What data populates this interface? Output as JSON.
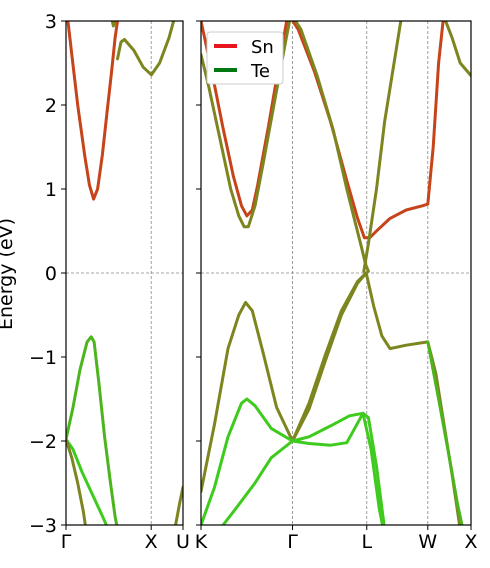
{
  "chart_data": {
    "type": "line",
    "title": "",
    "ylabel": "Energy (eV)",
    "ylim": [
      -3,
      3
    ],
    "yticks": [
      3,
      2,
      1,
      0,
      -1,
      -2,
      -3
    ],
    "ytick_labels": [
      "3",
      "2",
      "1",
      "0",
      "−1",
      "−2",
      "−3"
    ],
    "grid": "vertical dashed lines at high-symmetry points; horizontal dashed line at E=0",
    "legend": {
      "placement": "top-left of right panel",
      "entries": [
        {
          "label": "Sn",
          "color": "#e8141c"
        },
        {
          "label": "Te",
          "color": "#007a10"
        }
      ]
    },
    "panels": [
      {
        "name": "left",
        "xlim": [
          0,
          1
        ],
        "kpoints": [
          {
            "x": 0,
            "label": "Γ"
          },
          {
            "x": 0.728,
            "label": "X"
          },
          {
            "x": 1,
            "label": "U"
          }
        ],
        "series": [
          {
            "name": "",
            "color": "#c7441b",
            "points": [
              [
                0,
                3.2
              ],
              [
                0.05,
                2.6
              ],
              [
                0.1,
                2.0
              ],
              [
                0.16,
                1.4
              ],
              [
                0.2,
                1.05
              ],
              [
                0.236,
                0.88
              ],
              [
                0.27,
                1.0
              ],
              [
                0.31,
                1.4
              ],
              [
                0.35,
                1.9
              ],
              [
                0.39,
                2.4
              ],
              [
                0.42,
                2.8
              ],
              [
                0.44,
                3.0
              ],
              [
                0.46,
                3.2
              ]
            ]
          },
          {
            "name": "",
            "color": "#7d851f",
            "points": [
              [
                0.38,
                3.1
              ],
              [
                0.405,
                2.94
              ],
              [
                0.43,
                3.05
              ],
              [
                0.445,
                3.2
              ]
            ]
          },
          {
            "name": "",
            "color": "#7d851f",
            "points": [
              [
                0.44,
                2.55
              ],
              [
                0.47,
                2.75
              ],
              [
                0.5,
                2.78
              ],
              [
                0.58,
                2.65
              ],
              [
                0.66,
                2.45
              ],
              [
                0.73,
                2.36
              ],
              [
                0.8,
                2.5
              ],
              [
                0.88,
                2.8
              ],
              [
                0.92,
                3.0
              ],
              [
                0.94,
                3.2
              ]
            ]
          },
          {
            "name": "",
            "color": "#4cb51e",
            "points": [
              [
                0,
                -1.98
              ],
              [
                0.06,
                -1.6
              ],
              [
                0.12,
                -1.15
              ],
              [
                0.18,
                -0.82
              ],
              [
                0.215,
                -0.76
              ],
              [
                0.24,
                -0.82
              ],
              [
                0.28,
                -1.3
              ],
              [
                0.33,
                -1.95
              ],
              [
                0.38,
                -2.5
              ],
              [
                0.42,
                -2.9
              ],
              [
                0.44,
                -3.05
              ]
            ]
          },
          {
            "name": "",
            "color": "#3fca1e",
            "points": [
              [
                0,
                -1.98
              ],
              [
                0.06,
                -2.1
              ],
              [
                0.14,
                -2.38
              ],
              [
                0.24,
                -2.68
              ],
              [
                0.32,
                -2.92
              ],
              [
                0.36,
                -3.05
              ]
            ]
          },
          {
            "name": "",
            "color": "#7d851f",
            "points": [
              [
                0,
                -1.98
              ],
              [
                0.05,
                -2.2
              ],
              [
                0.1,
                -2.5
              ],
              [
                0.15,
                -2.85
              ],
              [
                0.17,
                -3.05
              ]
            ]
          },
          {
            "name": "",
            "color": "#7d851f",
            "points": [
              [
                0.93,
                -3.05
              ],
              [
                0.97,
                -2.75
              ],
              [
                1.0,
                -2.55
              ]
            ]
          }
        ]
      },
      {
        "name": "right",
        "xlim": [
          0,
          1
        ],
        "kpoints": [
          {
            "x": 0,
            "label": "K"
          },
          {
            "x": 0.339,
            "label": "Γ"
          },
          {
            "x": 0.614,
            "label": "L"
          },
          {
            "x": 0.84,
            "label": "W"
          },
          {
            "x": 1,
            "label": "X"
          }
        ],
        "series": [
          {
            "name": "",
            "color": "#c7441b",
            "points": [
              [
                0,
                3.0
              ],
              [
                0.04,
                2.4
              ],
              [
                0.08,
                1.75
              ],
              [
                0.12,
                1.15
              ],
              [
                0.15,
                0.8
              ],
              [
                0.17,
                0.68
              ],
              [
                0.19,
                0.75
              ],
              [
                0.21,
                1.05
              ],
              [
                0.25,
                1.75
              ],
              [
                0.29,
                2.5
              ],
              [
                0.32,
                3.05
              ],
              [
                0.34,
                3.2
              ]
            ]
          },
          {
            "name": "",
            "color": "#7d851f",
            "points": [
              [
                0,
                2.6
              ],
              [
                0.03,
                2.2
              ],
              [
                0.07,
                1.6
              ],
              [
                0.11,
                1.0
              ],
              [
                0.14,
                0.68
              ],
              [
                0.16,
                0.55
              ],
              [
                0.175,
                0.55
              ],
              [
                0.2,
                0.8
              ],
              [
                0.23,
                1.3
              ],
              [
                0.27,
                2.0
              ],
              [
                0.31,
                2.7
              ],
              [
                0.34,
                3.2
              ]
            ]
          },
          {
            "name": "",
            "color": "#c7441b",
            "points": [
              [
                0.3,
                3.2
              ],
              [
                0.36,
                2.9
              ],
              [
                0.42,
                2.4
              ],
              [
                0.48,
                1.8
              ],
              [
                0.54,
                1.1
              ],
              [
                0.58,
                0.65
              ],
              [
                0.605,
                0.42
              ],
              [
                0.625,
                0.42
              ],
              [
                0.65,
                0.5
              ],
              [
                0.7,
                0.65
              ],
              [
                0.76,
                0.75
              ],
              [
                0.82,
                0.8
              ],
              [
                0.84,
                0.82
              ],
              [
                0.86,
                1.5
              ],
              [
                0.88,
                2.5
              ],
              [
                0.9,
                3.1
              ],
              [
                0.91,
                3.2
              ]
            ]
          },
          {
            "name": "",
            "color": "#7d851f",
            "points": [
              [
                0.31,
                3.2
              ],
              [
                0.37,
                2.9
              ],
              [
                0.43,
                2.35
              ],
              [
                0.49,
                1.7
              ],
              [
                0.54,
                1.0
              ],
              [
                0.575,
                0.55
              ],
              [
                0.595,
                0.3
              ],
              [
                0.61,
                0.1
              ],
              [
                0.62,
                0.02
              ]
            ]
          },
          {
            "name": "",
            "color": "#7d851f",
            "points": [
              [
                0.603,
                0.02
              ],
              [
                0.62,
                0.35
              ],
              [
                0.65,
                1.0
              ],
              [
                0.68,
                1.8
              ],
              [
                0.72,
                2.6
              ],
              [
                0.75,
                3.2
              ]
            ]
          },
          {
            "name": "",
            "color": "#7d851f",
            "points": [
              [
                0.339,
                -2.0
              ],
              [
                0.4,
                -1.62
              ],
              [
                0.46,
                -1.05
              ],
              [
                0.52,
                -0.5
              ],
              [
                0.58,
                -0.12
              ],
              [
                0.612,
                0.0
              ],
              [
                0.64,
                -0.4
              ],
              [
                0.67,
                -0.75
              ],
              [
                0.7,
                -0.9
              ],
              [
                0.76,
                -0.86
              ],
              [
                0.84,
                -0.82
              ],
              [
                0.87,
                -1.2
              ],
              [
                0.9,
                -1.8
              ],
              [
                0.93,
                -2.4
              ],
              [
                0.96,
                -3.05
              ]
            ]
          },
          {
            "name": "",
            "color": "#7d851f",
            "points": [
              [
                0,
                -2.6
              ],
              [
                0.05,
                -1.8
              ],
              [
                0.1,
                -0.9
              ],
              [
                0.14,
                -0.5
              ],
              [
                0.165,
                -0.35
              ],
              [
                0.19,
                -0.45
              ],
              [
                0.23,
                -0.95
              ],
              [
                0.28,
                -1.6
              ],
              [
                0.339,
                -2.0
              ],
              [
                0.4,
                -1.55
              ],
              [
                0.46,
                -0.98
              ],
              [
                0.52,
                -0.45
              ],
              [
                0.58,
                -0.1
              ],
              [
                0.612,
                0.0
              ]
            ]
          },
          {
            "name": "",
            "color": "#3fca1e",
            "points": [
              [
                0,
                -3.0
              ],
              [
                0.05,
                -2.55
              ],
              [
                0.1,
                -1.95
              ],
              [
                0.15,
                -1.55
              ],
              [
                0.17,
                -1.5
              ],
              [
                0.2,
                -1.58
              ],
              [
                0.26,
                -1.85
              ],
              [
                0.339,
                -2.0
              ],
              [
                0.4,
                -1.95
              ],
              [
                0.48,
                -1.82
              ],
              [
                0.55,
                -1.7
              ],
              [
                0.6,
                -1.67
              ],
              [
                0.62,
                -1.72
              ],
              [
                0.65,
                -2.3
              ],
              [
                0.67,
                -2.8
              ],
              [
                0.68,
                -3.05
              ]
            ]
          },
          {
            "name": "",
            "color": "#3fca1e",
            "points": [
              [
                0.339,
                -2.0
              ],
              [
                0.4,
                -2.03
              ],
              [
                0.48,
                -2.05
              ],
              [
                0.54,
                -2.02
              ],
              [
                0.6,
                -1.67
              ],
              [
                0.63,
                -2.1
              ],
              [
                0.66,
                -2.8
              ],
              [
                0.675,
                -3.05
              ]
            ]
          },
          {
            "name": "",
            "color": "#3fca1e",
            "points": [
              [
                0.07,
                -3.05
              ],
              [
                0.13,
                -2.8
              ],
              [
                0.2,
                -2.5
              ],
              [
                0.26,
                -2.2
              ],
              [
                0.339,
                -2.0
              ]
            ]
          },
          {
            "name": "",
            "color": "#4cb51e",
            "points": [
              [
                0.84,
                -0.82
              ],
              [
                0.88,
                -1.5
              ],
              [
                0.92,
                -2.2
              ],
              [
                0.95,
                -2.75
              ],
              [
                0.97,
                -3.05
              ]
            ]
          },
          {
            "name": "",
            "color": "#7d851f",
            "points": [
              [
                0.9,
                3.05
              ],
              [
                0.93,
                2.8
              ],
              [
                0.96,
                2.5
              ],
              [
                1.0,
                2.35
              ]
            ]
          }
        ]
      }
    ]
  }
}
